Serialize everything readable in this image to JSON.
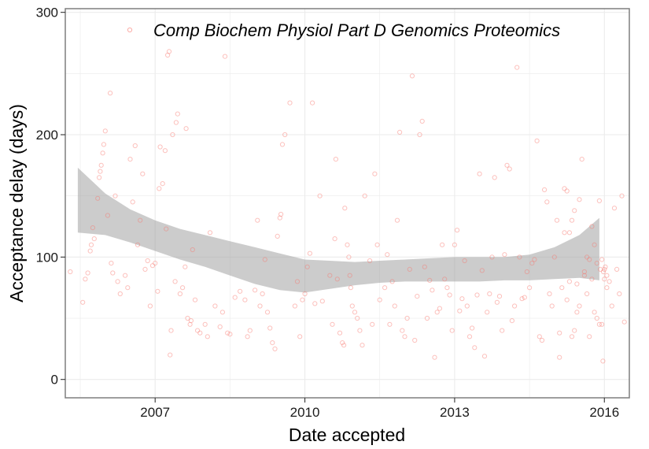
{
  "chart_data": {
    "type": "scatter",
    "xlabel": "Date accepted",
    "ylabel": "Acceptance delay (days)",
    "xlim": [
      2005.2,
      2016.5
    ],
    "ylim": [
      -15,
      303
    ],
    "x_ticks": [
      {
        "value": 2007,
        "label": "2007"
      },
      {
        "value": 2010,
        "label": "2010"
      },
      {
        "value": 2013,
        "label": "2013"
      },
      {
        "value": 2016,
        "label": "2016"
      }
    ],
    "y_ticks": [
      {
        "value": 0,
        "label": "0"
      },
      {
        "value": 100,
        "label": "100"
      },
      {
        "value": 200,
        "label": "200"
      },
      {
        "value": 300,
        "label": "300"
      }
    ],
    "grid": true,
    "legend": {
      "position": "top",
      "entries": [
        "Comp Biochem Physiol Part D Genomics Proteomics"
      ]
    },
    "colors": {
      "points": "#F8766D",
      "band": "#999999",
      "panel_border": "#7f7f7f",
      "grid": "#ebebeb"
    },
    "series": [
      {
        "name": "Comp Biochem Physiol Part D Genomics Proteomics",
        "points": [
          [
            2005.3,
            88
          ],
          [
            2005.55,
            63
          ],
          [
            2005.6,
            82
          ],
          [
            2005.65,
            87
          ],
          [
            2005.7,
            105
          ],
          [
            2005.72,
            110
          ],
          [
            2005.75,
            124
          ],
          [
            2005.78,
            115
          ],
          [
            2005.85,
            148
          ],
          [
            2005.88,
            165
          ],
          [
            2005.9,
            170
          ],
          [
            2005.92,
            175
          ],
          [
            2005.95,
            185
          ],
          [
            2005.97,
            192
          ],
          [
            2006.0,
            203
          ],
          [
            2006.05,
            134
          ],
          [
            2006.1,
            234
          ],
          [
            2006.12,
            95
          ],
          [
            2006.15,
            87
          ],
          [
            2006.2,
            150
          ],
          [
            2006.25,
            80
          ],
          [
            2006.3,
            70
          ],
          [
            2006.4,
            85
          ],
          [
            2006.45,
            75
          ],
          [
            2006.5,
            180
          ],
          [
            2006.55,
            145
          ],
          [
            2006.6,
            191
          ],
          [
            2006.65,
            110
          ],
          [
            2006.7,
            130
          ],
          [
            2006.75,
            168
          ],
          [
            2006.8,
            90
          ],
          [
            2006.85,
            97
          ],
          [
            2006.9,
            60
          ],
          [
            2006.95,
            93
          ],
          [
            2007.0,
            95
          ],
          [
            2007.05,
            72
          ],
          [
            2007.08,
            156
          ],
          [
            2007.1,
            190
          ],
          [
            2007.15,
            160
          ],
          [
            2007.2,
            187
          ],
          [
            2007.22,
            123
          ],
          [
            2007.25,
            265
          ],
          [
            2007.28,
            268
          ],
          [
            2007.3,
            20
          ],
          [
            2007.32,
            40
          ],
          [
            2007.35,
            200
          ],
          [
            2007.4,
            80
          ],
          [
            2007.42,
            210
          ],
          [
            2007.45,
            217
          ],
          [
            2007.5,
            70
          ],
          [
            2007.55,
            75
          ],
          [
            2007.6,
            92
          ],
          [
            2007.62,
            205
          ],
          [
            2007.65,
            50
          ],
          [
            2007.7,
            45
          ],
          [
            2007.72,
            48
          ],
          [
            2007.75,
            106
          ],
          [
            2007.8,
            65
          ],
          [
            2007.85,
            40
          ],
          [
            2007.9,
            38
          ],
          [
            2008.0,
            45
          ],
          [
            2008.05,
            35
          ],
          [
            2008.1,
            120
          ],
          [
            2008.2,
            60
          ],
          [
            2008.3,
            43
          ],
          [
            2008.35,
            55
          ],
          [
            2008.4,
            264
          ],
          [
            2008.45,
            38
          ],
          [
            2008.5,
            37
          ],
          [
            2008.6,
            67
          ],
          [
            2008.7,
            72
          ],
          [
            2008.8,
            65
          ],
          [
            2008.85,
            35
          ],
          [
            2008.9,
            40
          ],
          [
            2009.0,
            73
          ],
          [
            2009.05,
            130
          ],
          [
            2009.1,
            60
          ],
          [
            2009.15,
            70
          ],
          [
            2009.2,
            98
          ],
          [
            2009.25,
            55
          ],
          [
            2009.3,
            42
          ],
          [
            2009.35,
            30
          ],
          [
            2009.4,
            25
          ],
          [
            2009.45,
            117
          ],
          [
            2009.5,
            132
          ],
          [
            2009.52,
            135
          ],
          [
            2009.55,
            192
          ],
          [
            2009.6,
            200
          ],
          [
            2009.7,
            226
          ],
          [
            2009.8,
            60
          ],
          [
            2009.85,
            80
          ],
          [
            2009.9,
            35
          ],
          [
            2009.95,
            65
          ],
          [
            2010.0,
            70
          ],
          [
            2010.05,
            92
          ],
          [
            2010.1,
            103
          ],
          [
            2010.15,
            226
          ],
          [
            2010.2,
            62
          ],
          [
            2010.3,
            150
          ],
          [
            2010.35,
            64
          ],
          [
            2010.5,
            85
          ],
          [
            2010.55,
            45
          ],
          [
            2010.6,
            115
          ],
          [
            2010.62,
            180
          ],
          [
            2010.65,
            82
          ],
          [
            2010.7,
            38
          ],
          [
            2010.75,
            30
          ],
          [
            2010.78,
            28
          ],
          [
            2010.8,
            140
          ],
          [
            2010.85,
            110
          ],
          [
            2010.88,
            100
          ],
          [
            2010.9,
            85
          ],
          [
            2010.92,
            75
          ],
          [
            2010.95,
            60
          ],
          [
            2011.0,
            55
          ],
          [
            2011.05,
            50
          ],
          [
            2011.1,
            40
          ],
          [
            2011.15,
            28
          ],
          [
            2011.2,
            150
          ],
          [
            2011.3,
            97
          ],
          [
            2011.35,
            45
          ],
          [
            2011.4,
            168
          ],
          [
            2011.45,
            110
          ],
          [
            2011.5,
            65
          ],
          [
            2011.6,
            75
          ],
          [
            2011.65,
            102
          ],
          [
            2011.7,
            45
          ],
          [
            2011.75,
            80
          ],
          [
            2011.8,
            60
          ],
          [
            2011.85,
            130
          ],
          [
            2011.9,
            202
          ],
          [
            2011.95,
            40
          ],
          [
            2012.0,
            35
          ],
          [
            2012.05,
            50
          ],
          [
            2012.1,
            90
          ],
          [
            2012.15,
            248
          ],
          [
            2012.2,
            32
          ],
          [
            2012.25,
            68
          ],
          [
            2012.3,
            200
          ],
          [
            2012.35,
            211
          ],
          [
            2012.4,
            92
          ],
          [
            2012.45,
            50
          ],
          [
            2012.5,
            81
          ],
          [
            2012.55,
            73
          ],
          [
            2012.6,
            18
          ],
          [
            2012.65,
            55
          ],
          [
            2012.7,
            58
          ],
          [
            2012.75,
            110
          ],
          [
            2012.8,
            82
          ],
          [
            2012.85,
            75
          ],
          [
            2012.9,
            69
          ],
          [
            2012.95,
            40
          ],
          [
            2013.0,
            110
          ],
          [
            2013.05,
            122
          ],
          [
            2013.1,
            56
          ],
          [
            2013.15,
            66
          ],
          [
            2013.2,
            97
          ],
          [
            2013.25,
            60
          ],
          [
            2013.3,
            35
          ],
          [
            2013.35,
            42
          ],
          [
            2013.4,
            26
          ],
          [
            2013.45,
            69
          ],
          [
            2013.5,
            168
          ],
          [
            2013.55,
            89
          ],
          [
            2013.6,
            19
          ],
          [
            2013.65,
            55
          ],
          [
            2013.7,
            70
          ],
          [
            2013.75,
            100
          ],
          [
            2013.8,
            165
          ],
          [
            2013.85,
            63
          ],
          [
            2013.9,
            68
          ],
          [
            2013.95,
            40
          ],
          [
            2014.0,
            102
          ],
          [
            2014.05,
            175
          ],
          [
            2014.1,
            172
          ],
          [
            2014.15,
            48
          ],
          [
            2014.2,
            60
          ],
          [
            2014.25,
            255
          ],
          [
            2014.3,
            100
          ],
          [
            2014.35,
            66
          ],
          [
            2014.4,
            67
          ],
          [
            2014.45,
            88
          ],
          [
            2014.5,
            75
          ],
          [
            2014.55,
            95
          ],
          [
            2014.6,
            98
          ],
          [
            2014.65,
            195
          ],
          [
            2014.7,
            35
          ],
          [
            2014.75,
            32
          ],
          [
            2014.8,
            155
          ],
          [
            2014.85,
            145
          ],
          [
            2014.9,
            70
          ],
          [
            2014.95,
            60
          ],
          [
            2015.0,
            100
          ],
          [
            2015.05,
            130
          ],
          [
            2015.1,
            18
          ],
          [
            2015.15,
            75
          ],
          [
            2015.2,
            120
          ],
          [
            2015.25,
            65
          ],
          [
            2015.3,
            80
          ],
          [
            2015.35,
            35
          ],
          [
            2015.4,
            40
          ],
          [
            2015.45,
            55
          ],
          [
            2015.5,
            60
          ],
          [
            2015.55,
            180
          ],
          [
            2015.6,
            85
          ],
          [
            2015.65,
            100
          ],
          [
            2015.7,
            35
          ],
          [
            2015.75,
            82
          ],
          [
            2015.8,
            55
          ],
          [
            2015.85,
            50
          ],
          [
            2015.9,
            45
          ],
          [
            2015.92,
            90
          ],
          [
            2015.95,
            98
          ],
          [
            2015.97,
            15
          ],
          [
            2016.0,
            82
          ],
          [
            2016.02,
            92
          ],
          [
            2016.05,
            85
          ],
          [
            2016.1,
            80
          ],
          [
            2016.15,
            60
          ],
          [
            2016.2,
            140
          ],
          [
            2016.25,
            90
          ],
          [
            2016.3,
            70
          ],
          [
            2016.35,
            150
          ],
          [
            2016.4,
            47
          ],
          [
            2015.1,
            38
          ],
          [
            2015.2,
            156
          ],
          [
            2015.25,
            154
          ],
          [
            2015.3,
            120
          ],
          [
            2015.35,
            130
          ],
          [
            2015.4,
            138
          ],
          [
            2015.45,
            78
          ],
          [
            2015.5,
            147
          ],
          [
            2015.6,
            88
          ],
          [
            2015.65,
            70
          ],
          [
            2015.7,
            98
          ],
          [
            2015.75,
            125
          ],
          [
            2015.8,
            110
          ],
          [
            2015.85,
            95
          ],
          [
            2015.9,
            146
          ],
          [
            2015.95,
            45
          ],
          [
            2015.98,
            88
          ],
          [
            2016.0,
            90
          ],
          [
            2016.05,
            75
          ]
        ]
      }
    ],
    "smooth_band": {
      "x": [
        2005.45,
        2006.0,
        2006.5,
        2007.0,
        2007.5,
        2008.0,
        2008.5,
        2009.0,
        2009.5,
        2010.0,
        2010.5,
        2011.0,
        2011.5,
        2012.0,
        2012.5,
        2013.0,
        2013.5,
        2014.0,
        2014.5,
        2015.0,
        2015.5,
        2015.9
      ],
      "upper": [
        173,
        152,
        139,
        130,
        123,
        118,
        113,
        108,
        103,
        98,
        97,
        96,
        97,
        98,
        99,
        100,
        100,
        100,
        102,
        108,
        118,
        132
      ],
      "lower": [
        120,
        118,
        112,
        105,
        98,
        92,
        85,
        78,
        73,
        71,
        74,
        77,
        79,
        80,
        80,
        80,
        80,
        81,
        81,
        82,
        83,
        81
      ]
    }
  }
}
